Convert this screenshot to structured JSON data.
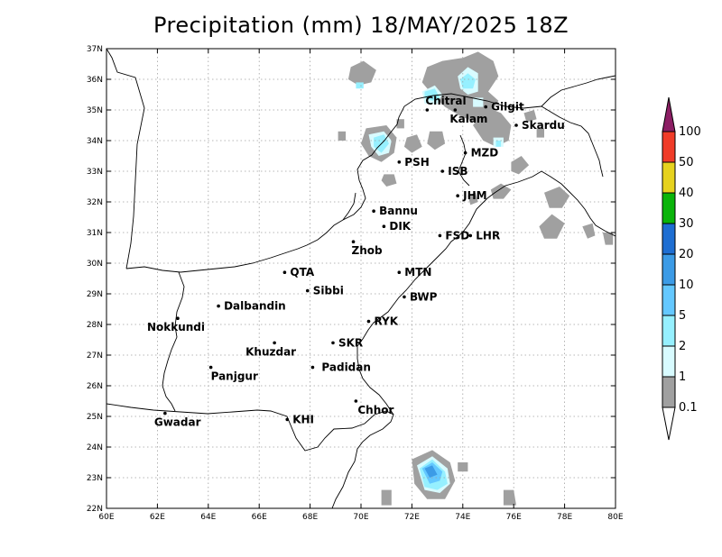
{
  "title": "Precipitation (mm) 18/MAY/2025 18Z",
  "map": {
    "lon_range": [
      60,
      80
    ],
    "lat_range": [
      22,
      37
    ],
    "x_ticks": [
      "60E",
      "62E",
      "64E",
      "66E",
      "68E",
      "70E",
      "72E",
      "74E",
      "76E",
      "78E",
      "80E"
    ],
    "y_ticks": [
      "22N",
      "23N",
      "24N",
      "25N",
      "26N",
      "27N",
      "28N",
      "29N",
      "30N",
      "31N",
      "32N",
      "33N",
      "34N",
      "35N",
      "36N",
      "37N"
    ],
    "grid": true
  },
  "cities": [
    {
      "name": "Chitral",
      "lon": 72.6,
      "lat": 35.0
    },
    {
      "name": "Gilgit",
      "lon": 74.9,
      "lat": 35.1
    },
    {
      "name": "Kalam",
      "lon": 73.7,
      "lat": 35.0
    },
    {
      "name": "Skardu",
      "lon": 76.1,
      "lat": 34.5
    },
    {
      "name": "MZD",
      "lon": 74.1,
      "lat": 33.6
    },
    {
      "name": "PSH",
      "lon": 71.5,
      "lat": 33.3
    },
    {
      "name": "ISB",
      "lon": 73.2,
      "lat": 33.0
    },
    {
      "name": "JHM",
      "lon": 73.8,
      "lat": 32.2
    },
    {
      "name": "Bannu",
      "lon": 70.5,
      "lat": 31.7
    },
    {
      "name": "DIK",
      "lon": 70.9,
      "lat": 31.2
    },
    {
      "name": "FSD",
      "lon": 73.1,
      "lat": 30.9
    },
    {
      "name": "LHR",
      "lon": 74.3,
      "lat": 30.9
    },
    {
      "name": "Zhob",
      "lon": 69.7,
      "lat": 30.7
    },
    {
      "name": "QTA",
      "lon": 67.0,
      "lat": 29.7
    },
    {
      "name": "MTN",
      "lon": 71.5,
      "lat": 29.7
    },
    {
      "name": "Sibbi",
      "lon": 67.9,
      "lat": 29.1
    },
    {
      "name": "BWP",
      "lon": 71.7,
      "lat": 28.9
    },
    {
      "name": "Nokkundi",
      "lon": 62.8,
      "lat": 28.2
    },
    {
      "name": "Dalbandin",
      "lon": 64.4,
      "lat": 28.6
    },
    {
      "name": "RYK",
      "lon": 70.3,
      "lat": 28.1
    },
    {
      "name": "Khuzdar",
      "lon": 66.6,
      "lat": 27.4
    },
    {
      "name": "SKR",
      "lon": 68.9,
      "lat": 27.4
    },
    {
      "name": "Padidan",
      "lon": 68.1,
      "lat": 26.6
    },
    {
      "name": "Panjgur",
      "lon": 64.1,
      "lat": 26.6
    },
    {
      "name": "Chhor",
      "lon": 69.8,
      "lat": 25.5
    },
    {
      "name": "Gwadar",
      "lon": 62.3,
      "lat": 25.1
    },
    {
      "name": "KHI",
      "lon": 67.1,
      "lat": 24.9
    }
  ],
  "legend": {
    "levels": [
      "0.1",
      "1",
      "2",
      "5",
      "10",
      "20",
      "30",
      "40",
      "50",
      "100"
    ],
    "colors": [
      "#a0a0a0",
      "#d8fbff",
      "#96f0ff",
      "#64c8ff",
      "#3c9be6",
      "#1e6ed2",
      "#0ab40a",
      "#e6d21e",
      "#f03c28",
      "#8c1e64"
    ],
    "overflow_color": "#8c1e64"
  },
  "precip_regions": [
    {
      "level": 0,
      "shape": "blob",
      "pts": [
        [
          74.0,
          36.7
        ],
        [
          74.6,
          36.9
        ],
        [
          75.2,
          36.6
        ],
        [
          75.4,
          36.1
        ],
        [
          75.0,
          35.6
        ],
        [
          75.4,
          35.3
        ],
        [
          75.1,
          34.9
        ],
        [
          74.5,
          34.6
        ],
        [
          73.9,
          34.8
        ],
        [
          73.3,
          35.1
        ],
        [
          72.8,
          35.5
        ],
        [
          72.4,
          35.9
        ],
        [
          72.6,
          36.4
        ],
        [
          73.2,
          36.6
        ]
      ]
    },
    {
      "level": 0,
      "shape": "blob",
      "pts": [
        [
          69.6,
          36.4
        ],
        [
          70.1,
          36.6
        ],
        [
          70.6,
          36.3
        ],
        [
          70.4,
          35.9
        ],
        [
          69.9,
          35.8
        ],
        [
          69.5,
          36.0
        ]
      ]
    },
    {
      "level": 0,
      "shape": "blob",
      "pts": [
        [
          74.9,
          35.1
        ],
        [
          75.5,
          34.9
        ],
        [
          75.9,
          34.5
        ],
        [
          75.8,
          34.0
        ],
        [
          75.3,
          33.8
        ],
        [
          74.8,
          34.0
        ],
        [
          74.4,
          34.5
        ]
      ]
    },
    {
      "level": 0,
      "shape": "blob",
      "pts": [
        [
          70.2,
          34.4
        ],
        [
          71.0,
          34.5
        ],
        [
          71.4,
          34.1
        ],
        [
          71.3,
          33.6
        ],
        [
          70.8,
          33.3
        ],
        [
          70.3,
          33.5
        ],
        [
          70.0,
          33.9
        ]
      ]
    },
    {
      "level": 0,
      "shape": "blob",
      "pts": [
        [
          71.8,
          34.1
        ],
        [
          72.2,
          34.2
        ],
        [
          72.4,
          33.8
        ],
        [
          72.0,
          33.6
        ],
        [
          71.7,
          33.8
        ]
      ]
    },
    {
      "level": 0,
      "shape": "blob",
      "pts": [
        [
          72.7,
          34.3
        ],
        [
          73.2,
          34.3
        ],
        [
          73.3,
          33.9
        ],
        [
          72.9,
          33.7
        ],
        [
          72.6,
          33.9
        ]
      ]
    },
    {
      "level": 0,
      "shape": "blob",
      "pts": [
        [
          70.9,
          32.9
        ],
        [
          71.3,
          32.9
        ],
        [
          71.4,
          32.6
        ],
        [
          71.0,
          32.5
        ],
        [
          70.8,
          32.7
        ]
      ]
    },
    {
      "level": 0,
      "shape": "blob",
      "pts": [
        [
          69.1,
          34.3
        ],
        [
          69.4,
          34.3
        ],
        [
          69.4,
          34.0
        ],
        [
          69.1,
          34.0
        ]
      ]
    },
    {
      "level": 0,
      "shape": "blob",
      "pts": [
        [
          71.4,
          34.7
        ],
        [
          71.7,
          34.7
        ],
        [
          71.7,
          34.4
        ],
        [
          71.4,
          34.4
        ]
      ]
    },
    {
      "level": 0,
      "shape": "blob",
      "pts": [
        [
          76.4,
          34.9
        ],
        [
          76.8,
          35.0
        ],
        [
          76.9,
          34.7
        ],
        [
          76.5,
          34.6
        ]
      ]
    },
    {
      "level": 0,
      "shape": "blob",
      "pts": [
        [
          76.9,
          34.4
        ],
        [
          77.2,
          34.4
        ],
        [
          77.2,
          34.1
        ],
        [
          76.9,
          34.1
        ]
      ]
    },
    {
      "level": 0,
      "shape": "blob",
      "pts": [
        [
          74.2,
          32.2
        ],
        [
          74.5,
          32.3
        ],
        [
          74.6,
          32.0
        ],
        [
          74.3,
          31.9
        ]
      ]
    },
    {
      "level": 0,
      "shape": "blob",
      "pts": [
        [
          75.1,
          32.4
        ],
        [
          75.5,
          32.6
        ],
        [
          75.9,
          32.4
        ],
        [
          75.6,
          32.1
        ],
        [
          75.2,
          32.1
        ]
      ]
    },
    {
      "level": 0,
      "shape": "blob",
      "pts": [
        [
          75.9,
          33.3
        ],
        [
          76.3,
          33.5
        ],
        [
          76.6,
          33.2
        ],
        [
          76.2,
          32.9
        ],
        [
          75.9,
          33.0
        ]
      ]
    },
    {
      "level": 0,
      "shape": "blob",
      "pts": [
        [
          77.2,
          32.3
        ],
        [
          77.8,
          32.5
        ],
        [
          78.2,
          32.2
        ],
        [
          77.9,
          31.8
        ],
        [
          77.4,
          31.8
        ]
      ]
    },
    {
      "level": 0,
      "shape": "blob",
      "pts": [
        [
          77.0,
          31.2
        ],
        [
          77.5,
          31.6
        ],
        [
          78.0,
          31.3
        ],
        [
          77.7,
          30.8
        ],
        [
          77.2,
          30.8
        ]
      ]
    },
    {
      "level": 0,
      "shape": "blob",
      "pts": [
        [
          78.7,
          31.2
        ],
        [
          79.1,
          31.3
        ],
        [
          79.2,
          30.9
        ],
        [
          78.9,
          30.8
        ]
      ]
    },
    {
      "level": 0,
      "shape": "blob",
      "pts": [
        [
          79.5,
          31.0
        ],
        [
          79.9,
          31.0
        ],
        [
          79.9,
          30.6
        ],
        [
          79.6,
          30.6
        ]
      ]
    },
    {
      "level": 0,
      "shape": "blob",
      "pts": [
        [
          72.0,
          23.6
        ],
        [
          72.8,
          23.9
        ],
        [
          73.5,
          23.5
        ],
        [
          73.7,
          22.9
        ],
        [
          73.3,
          22.3
        ],
        [
          72.6,
          22.3
        ],
        [
          72.1,
          22.8
        ]
      ]
    },
    {
      "level": 0,
      "shape": "blob",
      "pts": [
        [
          73.8,
          23.5
        ],
        [
          74.2,
          23.5
        ],
        [
          74.2,
          23.2
        ],
        [
          73.8,
          23.2
        ]
      ]
    },
    {
      "level": 0,
      "shape": "blob",
      "pts": [
        [
          70.8,
          22.6
        ],
        [
          71.2,
          22.6
        ],
        [
          71.2,
          22.1
        ],
        [
          70.8,
          22.1
        ]
      ]
    },
    {
      "level": 0,
      "shape": "blob",
      "pts": [
        [
          75.6,
          22.6
        ],
        [
          76.0,
          22.6
        ],
        [
          76.1,
          22.1
        ],
        [
          75.6,
          22.1
        ]
      ]
    },
    {
      "level": 1,
      "shape": "blob",
      "pts": [
        [
          73.8,
          36.1
        ],
        [
          74.2,
          36.4
        ],
        [
          74.6,
          36.2
        ],
        [
          74.6,
          35.6
        ],
        [
          74.2,
          35.5
        ],
        [
          73.9,
          35.7
        ]
      ]
    },
    {
      "level": 1,
      "shape": "blob",
      "pts": [
        [
          72.4,
          35.6
        ],
        [
          72.9,
          35.8
        ],
        [
          73.2,
          35.5
        ],
        [
          73.0,
          35.2
        ],
        [
          72.5,
          35.2
        ]
      ]
    },
    {
      "level": 1,
      "shape": "blob",
      "pts": [
        [
          70.3,
          34.2
        ],
        [
          70.9,
          34.3
        ],
        [
          71.2,
          34.0
        ],
        [
          71.1,
          33.6
        ],
        [
          70.7,
          33.5
        ],
        [
          70.4,
          33.8
        ]
      ]
    },
    {
      "level": 1,
      "shape": "blob",
      "pts": [
        [
          75.2,
          34.1
        ],
        [
          75.6,
          34.1
        ],
        [
          75.6,
          33.8
        ],
        [
          75.2,
          33.8
        ]
      ]
    },
    {
      "level": 1,
      "shape": "blob",
      "pts": [
        [
          74.4,
          35.4
        ],
        [
          74.8,
          35.4
        ],
        [
          74.8,
          35.1
        ],
        [
          74.4,
          35.1
        ]
      ]
    },
    {
      "level": 1,
      "shape": "blob",
      "pts": [
        [
          72.2,
          23.4
        ],
        [
          72.8,
          23.7
        ],
        [
          73.4,
          23.3
        ],
        [
          73.5,
          22.8
        ],
        [
          73.1,
          22.5
        ],
        [
          72.5,
          22.6
        ]
      ]
    },
    {
      "level": 2,
      "shape": "blob",
      "pts": [
        [
          73.9,
          36.0
        ],
        [
          74.2,
          36.2
        ],
        [
          74.5,
          36.0
        ],
        [
          74.4,
          35.7
        ],
        [
          74.0,
          35.7
        ]
      ]
    },
    {
      "level": 2,
      "shape": "blob",
      "pts": [
        [
          72.5,
          35.6
        ],
        [
          72.9,
          35.7
        ],
        [
          73.1,
          35.4
        ],
        [
          72.8,
          35.3
        ],
        [
          72.5,
          35.4
        ]
      ]
    },
    {
      "level": 2,
      "shape": "blob",
      "pts": [
        [
          70.5,
          34.1
        ],
        [
          70.9,
          34.2
        ],
        [
          71.1,
          33.9
        ],
        [
          70.8,
          33.6
        ],
        [
          70.5,
          33.8
        ]
      ]
    },
    {
      "level": 2,
      "shape": "blob",
      "pts": [
        [
          69.8,
          35.9
        ],
        [
          70.1,
          35.9
        ],
        [
          70.1,
          35.7
        ],
        [
          69.8,
          35.7
        ]
      ]
    },
    {
      "level": 2,
      "shape": "blob",
      "pts": [
        [
          75.3,
          34.0
        ],
        [
          75.5,
          34.0
        ],
        [
          75.5,
          33.8
        ],
        [
          75.3,
          33.8
        ]
      ]
    },
    {
      "level": 2,
      "shape": "blob",
      "pts": [
        [
          72.3,
          23.3
        ],
        [
          72.8,
          23.6
        ],
        [
          73.3,
          23.2
        ],
        [
          73.4,
          22.8
        ],
        [
          73.0,
          22.6
        ],
        [
          72.5,
          22.7
        ]
      ]
    },
    {
      "level": 3,
      "shape": "blob",
      "pts": [
        [
          72.4,
          23.3
        ],
        [
          72.8,
          23.5
        ],
        [
          73.2,
          23.2
        ],
        [
          73.1,
          22.9
        ],
        [
          72.7,
          22.8
        ]
      ]
    },
    {
      "level": 4,
      "shape": "blob",
      "pts": [
        [
          72.5,
          23.3
        ],
        [
          72.8,
          23.4
        ],
        [
          73.0,
          23.1
        ],
        [
          72.7,
          23.0
        ]
      ]
    }
  ]
}
